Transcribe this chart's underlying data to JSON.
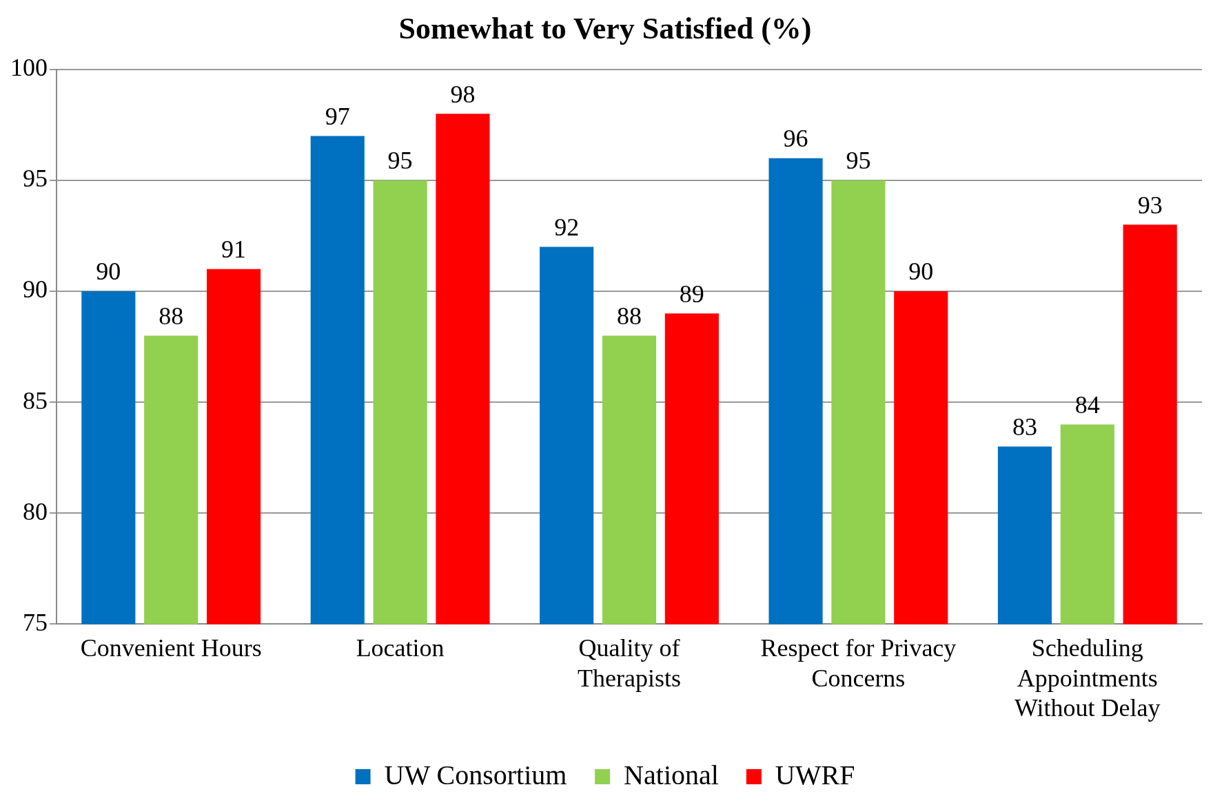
{
  "chart_data": {
    "type": "bar",
    "title": "Somewhat to Very Satisfied (%)",
    "categories": [
      "Convenient Hours",
      "Location",
      "Quality of Therapists",
      "Respect for Privacy Concerns",
      "Scheduling Appointments Without Delay"
    ],
    "series": [
      {
        "name": "UW Consortium",
        "color": "#0070c0",
        "values": [
          90,
          97,
          92,
          96,
          83
        ]
      },
      {
        "name": "National",
        "color": "#92d050",
        "values": [
          88,
          95,
          88,
          95,
          84
        ]
      },
      {
        "name": "UWRF",
        "color": "#ff0000",
        "values": [
          91,
          98,
          89,
          90,
          93
        ]
      }
    ],
    "ylim": [
      75,
      100
    ],
    "yticks": [
      75,
      80,
      85,
      90,
      95,
      100
    ],
    "grid": "y",
    "legend": "bottom",
    "data_labels": true
  }
}
